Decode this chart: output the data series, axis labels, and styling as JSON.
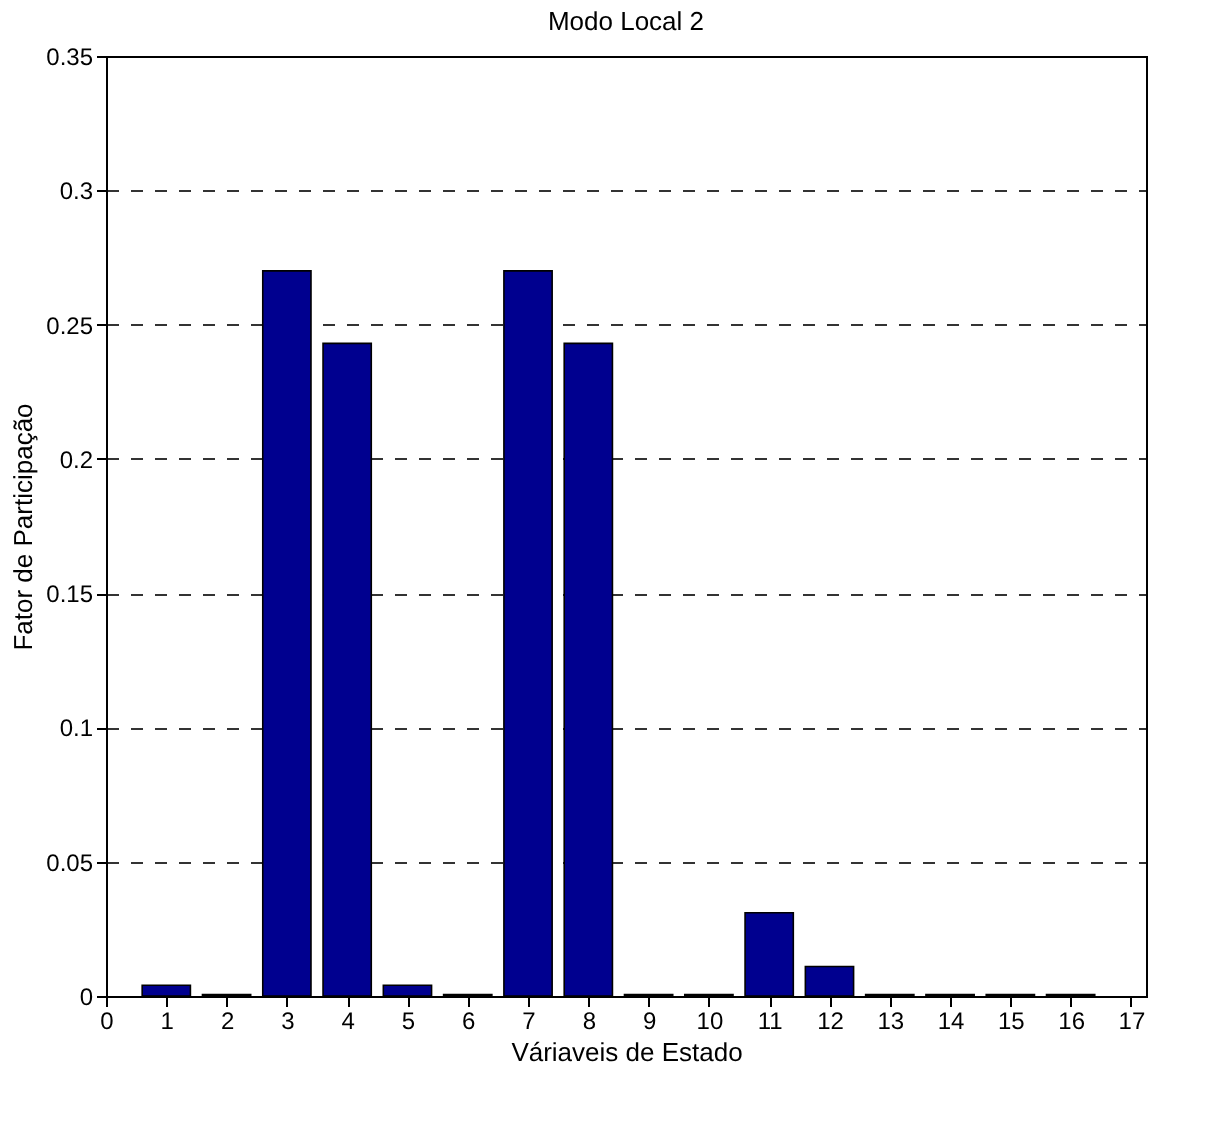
{
  "chart_data": {
    "type": "bar",
    "title": "Modo Local 2",
    "xlabel": "Váriaveis de Estado",
    "ylabel": "Fator de Participação",
    "x": [
      1,
      2,
      3,
      4,
      5,
      6,
      7,
      8,
      9,
      10,
      11,
      12,
      13,
      14,
      15,
      16
    ],
    "values": [
      0.004,
      0.0005,
      0.27,
      0.243,
      0.004,
      0.0005,
      0.27,
      0.243,
      0.0005,
      0.0005,
      0.031,
      0.011,
      0.0005,
      0.0005,
      0.0005,
      0.0005
    ],
    "color": "#00008f",
    "xlim": [
      0,
      17.25
    ],
    "xticks": [
      0,
      1,
      2,
      3,
      4,
      5,
      6,
      7,
      8,
      9,
      10,
      11,
      12,
      13,
      14,
      15,
      16,
      17
    ],
    "ylim": [
      0,
      0.35
    ],
    "yticks": [
      0,
      0.05,
      0.1,
      0.15,
      0.2,
      0.25,
      0.3,
      0.35
    ],
    "grid": "y"
  }
}
